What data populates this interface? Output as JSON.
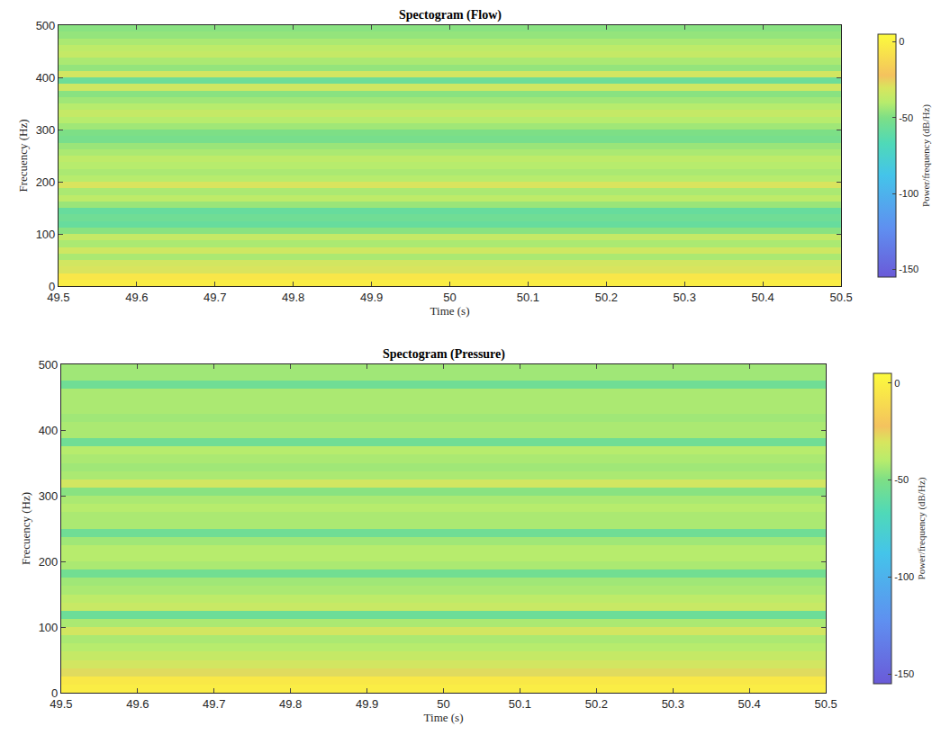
{
  "chart_data": [
    {
      "type": "heatmap",
      "title": "Spectogram (Flow)",
      "x_label": "Time (s)",
      "y_label": "Frecuency (Hz)",
      "x": [
        49.5,
        50.5
      ],
      "y": [
        0,
        12.5,
        25,
        37.5,
        50,
        62.5,
        75,
        87.5,
        100,
        112.5,
        125,
        137.5,
        150,
        162.5,
        175,
        187.5,
        200,
        212.5,
        225,
        237.5,
        250,
        262.5,
        275,
        287.5,
        300,
        312.5,
        325,
        337.5,
        350,
        362.5,
        375,
        387.5,
        400,
        412.5,
        425,
        437.5,
        450,
        462.5,
        475,
        487.5,
        500
      ],
      "cells": [
        [
          -2
        ],
        [
          -5
        ],
        [
          -30
        ],
        [
          -32
        ],
        [
          -42
        ],
        [
          -33
        ],
        [
          -42
        ],
        [
          -36
        ],
        [
          -48
        ],
        [
          -58
        ],
        [
          -55
        ],
        [
          -58
        ],
        [
          -45
        ],
        [
          -38
        ],
        [
          -42
        ],
        [
          -30
        ],
        [
          -40
        ],
        [
          -42
        ],
        [
          -40
        ],
        [
          -38
        ],
        [
          -42
        ],
        [
          -45
        ],
        [
          -52
        ],
        [
          -50
        ],
        [
          -44
        ],
        [
          -40
        ],
        [
          -36
        ],
        [
          -40
        ],
        [
          -44
        ],
        [
          -48
        ],
        [
          -33
        ],
        [
          -56
        ],
        [
          -32
        ],
        [
          -46
        ],
        [
          -42
        ],
        [
          -36
        ],
        [
          -38
        ],
        [
          -42
        ],
        [
          -46
        ],
        [
          -48
        ]
      ],
      "xlim": [
        49.5,
        50.5
      ],
      "xticks": [
        49.5,
        49.6,
        49.7,
        49.8,
        49.9,
        50,
        50.1,
        50.2,
        50.3,
        50.4,
        50.5
      ],
      "ylim": [
        0,
        500
      ],
      "yticks": [
        0,
        100,
        200,
        300,
        400,
        500
      ],
      "colorbar": {
        "title": "Power/frequency (dB/Hz)",
        "range": [
          -155,
          5
        ],
        "ticks": [
          -150,
          -100,
          -50,
          0
        ]
      }
    },
    {
      "type": "heatmap",
      "title": "Spectogram (Pressure)",
      "x_label": "Time (s)",
      "y_label": "Frecuency (Hz)",
      "x": [
        49.5,
        50.5
      ],
      "y": [
        0,
        12.5,
        25,
        37.5,
        50,
        62.5,
        75,
        87.5,
        100,
        112.5,
        125,
        137.5,
        150,
        162.5,
        175,
        187.5,
        200,
        212.5,
        225,
        237.5,
        250,
        262.5,
        275,
        287.5,
        300,
        312.5,
        325,
        337.5,
        350,
        362.5,
        375,
        387.5,
        400,
        412.5,
        425,
        437.5,
        450,
        462.5,
        475,
        487.5,
        500
      ],
      "cells": [
        [
          -2
        ],
        [
          -4
        ],
        [
          -28
        ],
        [
          -32
        ],
        [
          -36
        ],
        [
          -40
        ],
        [
          -42
        ],
        [
          -32
        ],
        [
          -42
        ],
        [
          -56
        ],
        [
          -35
        ],
        [
          -38
        ],
        [
          -42
        ],
        [
          -44
        ],
        [
          -54
        ],
        [
          -42
        ],
        [
          -40
        ],
        [
          -40
        ],
        [
          -44
        ],
        [
          -55
        ],
        [
          -42
        ],
        [
          -42
        ],
        [
          -40
        ],
        [
          -42
        ],
        [
          -48
        ],
        [
          -32
        ],
        [
          -42
        ],
        [
          -44
        ],
        [
          -42
        ],
        [
          -40
        ],
        [
          -55
        ],
        [
          -42
        ],
        [
          -42
        ],
        [
          -44
        ],
        [
          -42
        ],
        [
          -42
        ],
        [
          -42
        ],
        [
          -55
        ],
        [
          -44
        ],
        [
          -44
        ]
      ],
      "xlim": [
        49.5,
        50.5
      ],
      "xticks": [
        49.5,
        49.6,
        49.7,
        49.8,
        49.9,
        50,
        50.1,
        50.2,
        50.3,
        50.4,
        50.5
      ],
      "ylim": [
        0,
        500
      ],
      "yticks": [
        0,
        100,
        200,
        300,
        400,
        500
      ],
      "colorbar": {
        "title": "Power/frequency (dB/Hz)",
        "range": [
          -155,
          5
        ],
        "ticks": [
          -150,
          -100,
          -50,
          0
        ]
      }
    }
  ]
}
